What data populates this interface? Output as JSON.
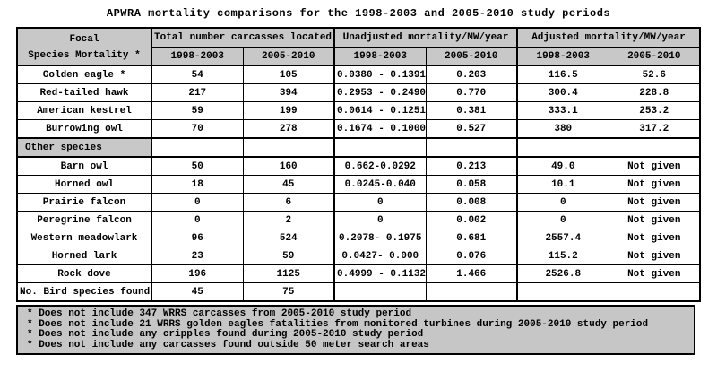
{
  "title": "APWRA mortality comparisons for the 1998-2003 and 2005-2010 study periods",
  "table": {
    "header": {
      "focal_line1": "Focal",
      "focal_line2": "Species Mortality *",
      "groups": [
        "Total number carcasses located",
        "Unadjusted mortality/MW/year",
        "Adjusted mortality/MW/year"
      ],
      "period_cols": [
        "1998-2003",
        "2005-2010",
        "1998-2003",
        "2005-2010",
        "1998-2003",
        "2005-2010"
      ]
    },
    "rows": [
      {
        "species": "Golden eagle *",
        "section": false,
        "cells": [
          "54",
          "105",
          "0.0380 - 0.1391",
          "0.203",
          "116.5",
          "52.6"
        ]
      },
      {
        "species": "Red-tailed hawk",
        "section": false,
        "cells": [
          "217",
          "394",
          "0.2953 - 0.2490",
          "0.770",
          "300.4",
          "228.8"
        ]
      },
      {
        "species": "American kestrel",
        "section": false,
        "cells": [
          "59",
          "199",
          "0.0614 - 0.1251",
          "0.381",
          "333.1",
          "253.2"
        ]
      },
      {
        "species": "Burrowing owl",
        "section": false,
        "cells": [
          "70",
          "278",
          "0.1674 - 0.1000",
          "0.527",
          "380",
          "317.2"
        ]
      },
      {
        "species": "Other species",
        "section": true,
        "cells": [
          "",
          "",
          "",
          "",
          "",
          ""
        ]
      },
      {
        "species": "Barn owl",
        "section": false,
        "cells": [
          "50",
          "160",
          "0.662-0.0292",
          "0.213",
          "49.0",
          "Not given"
        ]
      },
      {
        "species": "Horned owl",
        "section": false,
        "cells": [
          "18",
          "45",
          "0.0245-0.040",
          "0.058",
          "10.1",
          "Not given"
        ]
      },
      {
        "species": "Prairie falcon",
        "section": false,
        "cells": [
          "0",
          "6",
          "0",
          "0.008",
          "0",
          "Not given"
        ]
      },
      {
        "species": "Peregrine falcon",
        "section": false,
        "cells": [
          "0",
          "2",
          "0",
          "0.002",
          "0",
          "Not given"
        ]
      },
      {
        "species": "Western meadowlark",
        "section": false,
        "cells": [
          "96",
          "524",
          "0.2078- 0.1975",
          "0.681",
          "2557.4",
          "Not given"
        ]
      },
      {
        "species": "Horned lark",
        "section": false,
        "cells": [
          "23",
          "59",
          "0.0427- 0.000",
          "0.076",
          "115.2",
          "Not given"
        ]
      },
      {
        "species": "Rock dove",
        "section": false,
        "cells": [
          "196",
          "1125",
          "0.4999 - 0.1132",
          "1.466",
          "2526.8",
          "Not given"
        ]
      },
      {
        "species": "No. Bird species found",
        "section": false,
        "cells": [
          "45",
          "75",
          "",
          "",
          "",
          ""
        ]
      }
    ]
  },
  "footnotes": [
    "* Does not include 347 WRRS carcasses from 2005-2010 study period",
    "* Does not include 21 WRRS golden eagles fatalities from monitored turbines during 2005-2010 study period",
    "* Does not include any cripples found during 2005-2010 study period",
    "* Does not include any carcasses found outside 50 meter search areas"
  ],
  "colors": {
    "header_bg": "#c8c8c8",
    "footnote_bg": "#c6c6c6",
    "cell_bg": "#ffffff",
    "border": "#000000"
  }
}
